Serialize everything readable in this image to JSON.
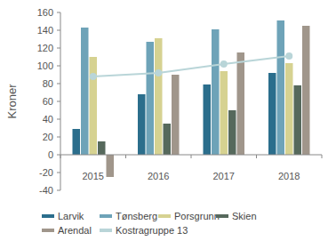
{
  "chart_data": {
    "type": "bar",
    "y_label": "Kroner",
    "categories": [
      "2015",
      "2016",
      "2017",
      "2018"
    ],
    "ylim": [
      -40,
      160
    ],
    "yticks": [
      -40,
      -20,
      0,
      20,
      40,
      60,
      80,
      100,
      120,
      140,
      160
    ],
    "grid": false,
    "legend": "bottom",
    "series": [
      {
        "name": "Larvik",
        "color": "#2b6e8c",
        "values": [
          29,
          68,
          79,
          92
        ]
      },
      {
        "name": "Tønsberg",
        "color": "#6ea3b8",
        "values": [
          143,
          127,
          141,
          151
        ]
      },
      {
        "name": "Porsgrunn",
        "color": "#d6d291",
        "values": [
          110,
          131,
          94,
          103
        ]
      },
      {
        "name": "Skien",
        "color": "#56695c",
        "values": [
          15,
          35,
          50,
          78
        ]
      },
      {
        "name": "Arendal",
        "color": "#a0968b",
        "values": [
          -25,
          90,
          115,
          145
        ]
      },
      {
        "name": "Kostragruppe 13",
        "color": "#b9d5d8",
        "type": "line",
        "marker": "circle",
        "values": [
          88,
          92,
          102,
          111
        ]
      }
    ]
  }
}
